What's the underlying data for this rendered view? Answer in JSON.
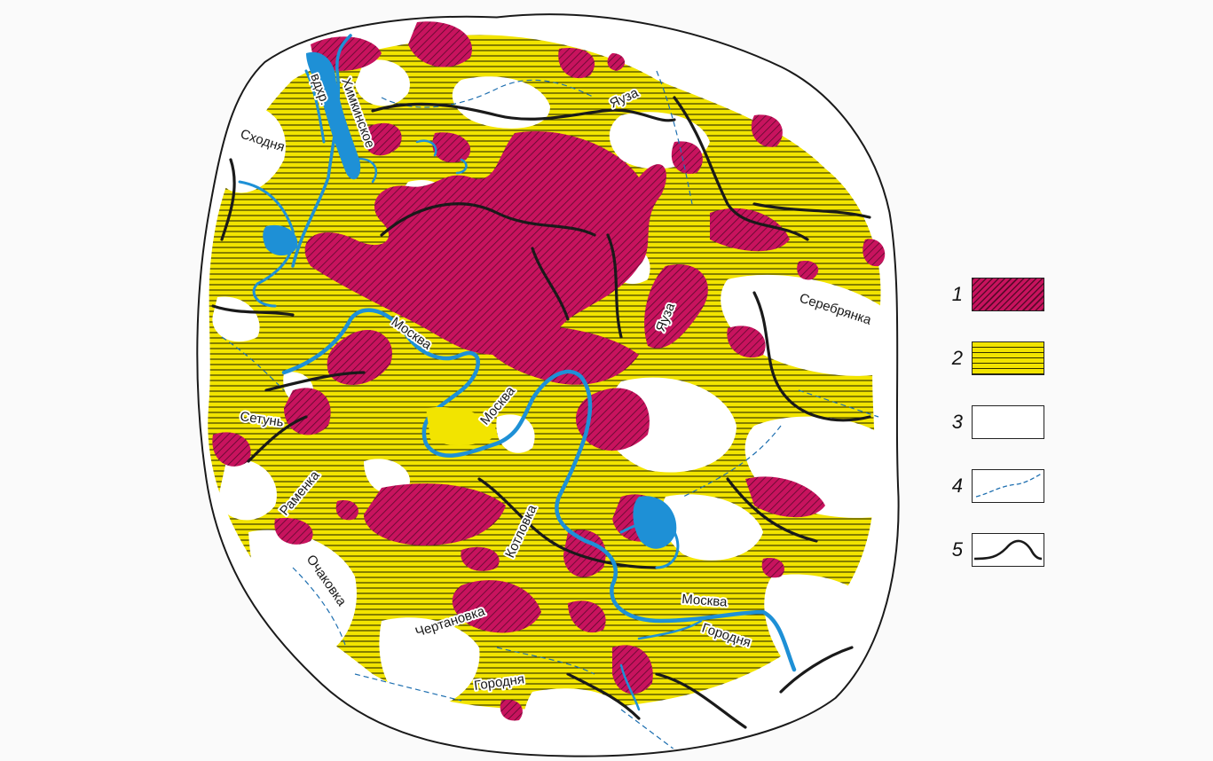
{
  "map": {
    "river_labels": {
      "khimki_reservoir_a": "Химкинское",
      "khimki_reservoir_b": "вдхр.",
      "skhodnya": "Сходня",
      "yauza_north": "Яуза",
      "yauza_center": "Яуза",
      "serebryanka": "Серебрянка",
      "moskva_west": "Москва",
      "moskva_center": "Москва",
      "moskva_south": "Москва",
      "setun": "Сетунь",
      "ramenka": "Раменка",
      "ochakovka": "Очаковка",
      "kotlovka": "Котловка",
      "chertanovka": "Чертановка",
      "gorodnya_east": "Городня",
      "gorodnya_south": "Городня"
    },
    "colors": {
      "zone_1": "#c8135e",
      "zone_2": "#f2e400",
      "zone_3": "#ffffff",
      "river": "#1e90d6",
      "stream": "#1e6fb0",
      "boundary": "#1a1a1a"
    }
  },
  "legend": {
    "items": [
      {
        "num": "1",
        "symbol": "magenta-hatched-area"
      },
      {
        "num": "2",
        "symbol": "yellow-lined-area"
      },
      {
        "num": "3",
        "symbol": "white-area"
      },
      {
        "num": "4",
        "symbol": "dashed-stream-line"
      },
      {
        "num": "5",
        "symbol": "black-boundary-line"
      }
    ]
  }
}
